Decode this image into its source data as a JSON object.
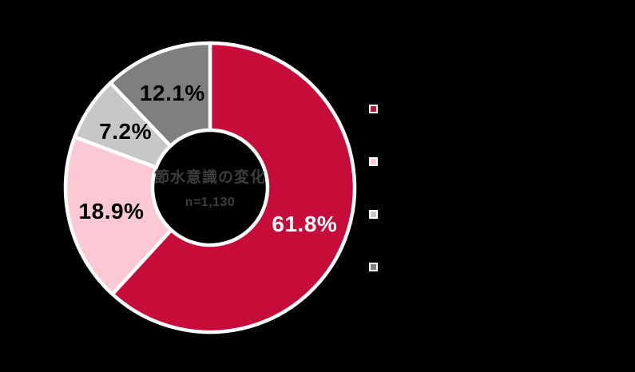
{
  "canvas": {
    "background": "#000000"
  },
  "chart_data": {
    "type": "pie",
    "variant": "donut",
    "title": "節水意識の変化",
    "subtitle": "n=1,130",
    "center_text_color": "#3D3D3D",
    "direction": "clockwise",
    "start_angle_deg": 0,
    "separator_color": "#FFFFFF",
    "legend_position": "right",
    "segments": [
      {
        "value": 61.8,
        "label": "61.8%",
        "color": "#C60C38",
        "label_color": "#FFFFFF"
      },
      {
        "value": 18.9,
        "label": "18.9%",
        "color": "#FBC9D4",
        "label_color": "#000000"
      },
      {
        "value": 7.2,
        "label": "7.2%",
        "color": "#C7C7C7",
        "label_color": "#000000"
      },
      {
        "value": 12.1,
        "label": "12.1%",
        "color": "#7F7F7F",
        "label_color": "#000000"
      }
    ]
  }
}
